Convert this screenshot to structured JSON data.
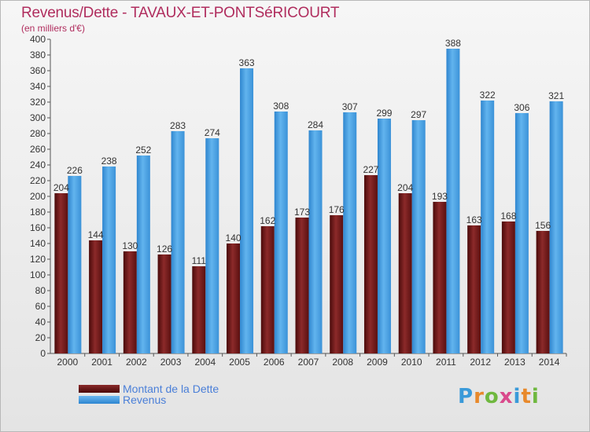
{
  "header": {
    "title": "Revenus/Dette - TAVAUX-ET-PONTSéRICOURT",
    "subtitle": "(en milliers d'€)"
  },
  "legend": {
    "items": [
      {
        "label": "Montant de la Dette",
        "color": "#6a1515"
      },
      {
        "label": "Revenus",
        "color": "#4a9fe3"
      }
    ]
  },
  "logo": {
    "text": "Proxiti",
    "letters": [
      "P",
      "r",
      "o",
      "x",
      "i",
      "t",
      "i"
    ],
    "colors": [
      "#3a9ad9",
      "#e8892b",
      "#6fb83f",
      "#d94a8c",
      "#3a9ad9",
      "#e8892b",
      "#6fb83f"
    ]
  },
  "chart_data": {
    "type": "bar",
    "title": "Revenus/Dette - TAVAUX-ET-PONTSéRICOURT",
    "subtitle": "(en milliers d'€)",
    "xlabel": "",
    "ylabel": "",
    "categories": [
      "2000",
      "2001",
      "2002",
      "2003",
      "2004",
      "2005",
      "2006",
      "2007",
      "2008",
      "2009",
      "2010",
      "2011",
      "2012",
      "2013",
      "2014"
    ],
    "series": [
      {
        "name": "Montant de la Dette",
        "color": "#6a1515",
        "values": [
          204,
          144,
          130,
          126,
          111,
          140,
          162,
          173,
          176,
          227,
          204,
          193,
          163,
          168,
          156
        ]
      },
      {
        "name": "Revenus",
        "color": "#4a9fe3",
        "values": [
          226,
          238,
          252,
          283,
          274,
          363,
          308,
          284,
          307,
          299,
          297,
          388,
          322,
          306,
          321
        ]
      }
    ],
    "ylim": [
      0,
      400
    ],
    "yticks": [
      0,
      20,
      40,
      60,
      80,
      100,
      120,
      140,
      160,
      180,
      200,
      220,
      240,
      260,
      280,
      300,
      320,
      340,
      360,
      380,
      400
    ],
    "grid": false,
    "legend_position": "bottom-left"
  }
}
